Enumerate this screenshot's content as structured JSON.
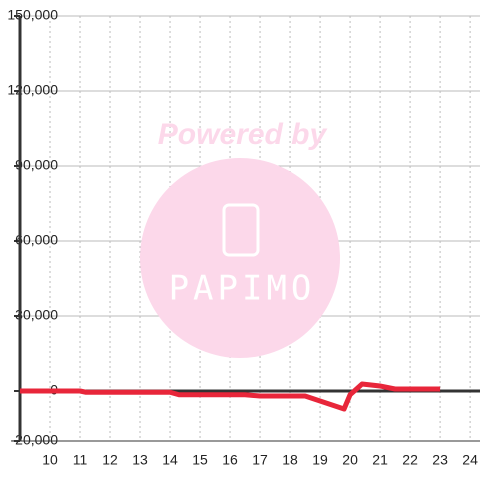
{
  "chart_data": {
    "type": "line",
    "watermark": {
      "title": "Powered by",
      "logo": "PAPIMO"
    },
    "x": [
      9,
      10,
      11,
      11.2,
      12,
      13,
      14,
      14.3,
      15,
      16,
      16.5,
      17,
      18,
      18.5,
      19,
      19.5,
      19.8,
      20,
      20.4,
      21,
      21.5,
      22,
      23
    ],
    "series": [
      {
        "color": "#e8263a",
        "values": [
          0,
          0,
          0,
          -500,
          -500,
          -500,
          -500,
          -1500,
          -1500,
          -1500,
          -1500,
          -2000,
          -2000,
          -2000,
          -4000,
          -6000,
          -7200,
          -1500,
          2800,
          2000,
          800,
          800,
          800
        ]
      }
    ],
    "xlim": [
      9,
      24.33
    ],
    "xticks": [
      10,
      11,
      12,
      13,
      14,
      15,
      16,
      17,
      18,
      19,
      20,
      21,
      22,
      23,
      24
    ],
    "ylim": [
      -20000,
      150000
    ],
    "yticks": [
      {
        "value": -20000,
        "label": "-20,000"
      },
      0,
      {
        "value": 30000,
        "label": "30,000"
      },
      {
        "value": 60000,
        "label": "60,000"
      },
      {
        "value": 90000,
        "label": "90,000"
      },
      {
        "value": 120000,
        "label": "120,000"
      },
      {
        "value": 150000,
        "label": "150,000"
      }
    ],
    "grid": true
  }
}
